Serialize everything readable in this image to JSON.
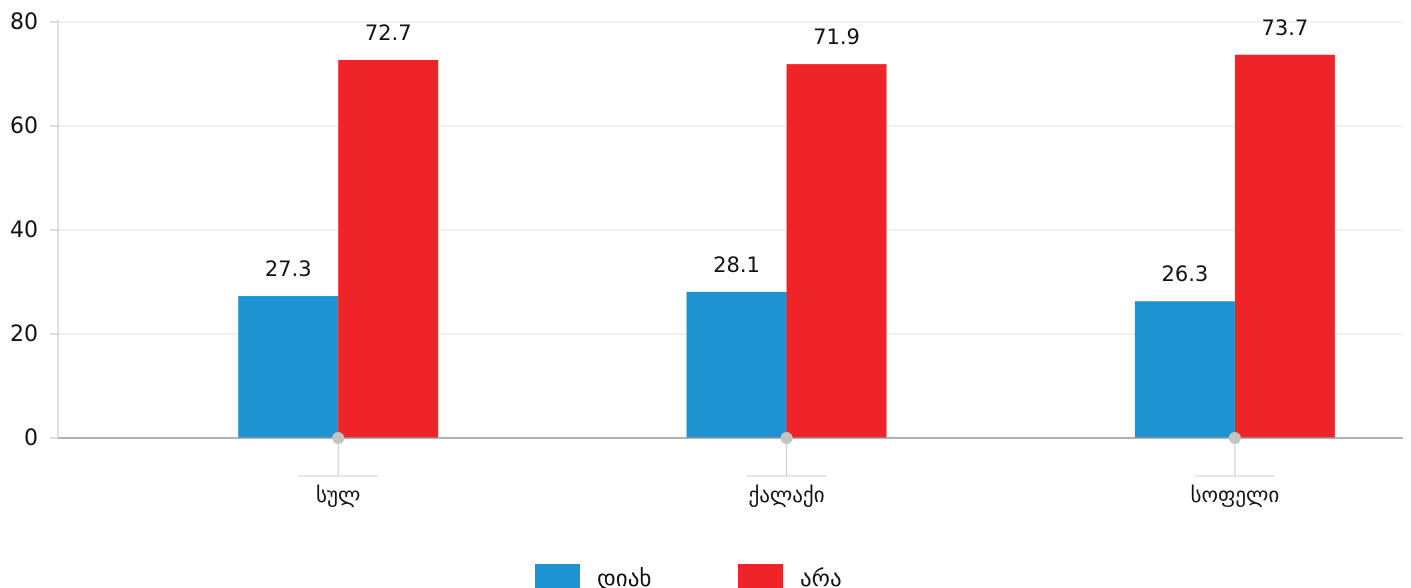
{
  "chart_data": {
    "type": "bar",
    "categories": [
      "სულ",
      "ქალაქი",
      "სოფელი"
    ],
    "series": [
      {
        "name": "დიახ",
        "values": [
          27.3,
          28.1,
          26.3
        ],
        "color": "#1e93d2"
      },
      {
        "name": "არა",
        "values": [
          72.7,
          71.9,
          73.7
        ],
        "color": "#ee2428"
      }
    ],
    "ylim": [
      0,
      80
    ],
    "yticks": [
      0,
      20,
      40,
      60,
      80
    ],
    "grid": true,
    "legend_position": "bottom-center",
    "xlabel": "",
    "ylabel": "",
    "title": ""
  }
}
